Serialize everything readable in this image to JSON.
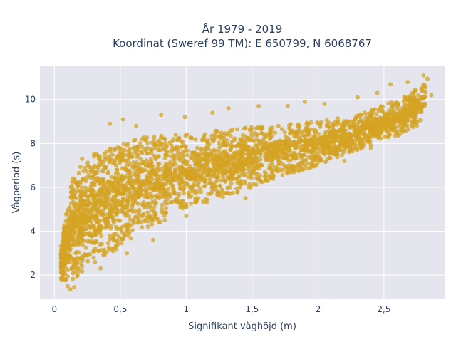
{
  "chart_data": {
    "type": "scatter",
    "title_lines": [
      "År 1979 - 2019",
      "Koordinat (Sweref 99 TM): E 650799, N 6068767"
    ],
    "xlabel": "Signifikant våghöjd (m)",
    "ylabel": "Vågperiod (s)",
    "xlim": [
      -0.11,
      2.96
    ],
    "ylim": [
      0.9,
      11.55
    ],
    "x_ticks": [
      0,
      0.5,
      1,
      1.5,
      2,
      2.5
    ],
    "x_tick_labels": [
      "0",
      "0,5",
      "1",
      "1,5",
      "2",
      "2,5"
    ],
    "y_ticks": [
      2,
      4,
      6,
      8,
      10
    ],
    "y_tick_labels": [
      "2",
      "4",
      "6",
      "8",
      "10"
    ],
    "grid": true,
    "colors": {
      "marker": "#d4a321",
      "plot_background": "#e5e5ee",
      "grid": "#ffffff",
      "text": "#2a3f5f"
    },
    "marker_opacity": 0.75,
    "envelope": {
      "description_of_point_cloud": "dense cloud of wave period vs significant wave height",
      "x": [
        0.05,
        0.1,
        0.15,
        0.2,
        0.3,
        0.4,
        0.5,
        0.6,
        0.7,
        0.8,
        1.0,
        1.2,
        1.4,
        1.6,
        1.8,
        2.0,
        2.2,
        2.4,
        2.6,
        2.75,
        2.82
      ],
      "y_upper": [
        3.4,
        5.6,
        6.6,
        7.1,
        7.5,
        7.8,
        8.0,
        8.2,
        8.3,
        8.4,
        8.5,
        8.6,
        8.7,
        8.8,
        8.9,
        9.0,
        9.2,
        9.5,
        10.0,
        10.5,
        10.9
      ],
      "y_lower": [
        1.8,
        1.4,
        1.8,
        2.1,
        2.5,
        2.9,
        3.3,
        3.7,
        4.1,
        4.4,
        4.9,
        5.4,
        5.8,
        6.2,
        6.6,
        7.0,
        7.5,
        7.9,
        8.3,
        8.8,
        9.4
      ]
    },
    "outliers": [
      {
        "x": 0.42,
        "y": 8.9
      },
      {
        "x": 0.52,
        "y": 9.1
      },
      {
        "x": 0.62,
        "y": 8.8
      },
      {
        "x": 0.81,
        "y": 9.3
      },
      {
        "x": 0.99,
        "y": 9.2
      },
      {
        "x": 1.2,
        "y": 9.4
      },
      {
        "x": 1.32,
        "y": 9.6
      },
      {
        "x": 1.55,
        "y": 9.7
      },
      {
        "x": 1.77,
        "y": 9.7
      },
      {
        "x": 1.9,
        "y": 9.9
      },
      {
        "x": 2.05,
        "y": 9.8
      },
      {
        "x": 2.3,
        "y": 10.1
      },
      {
        "x": 2.45,
        "y": 10.3
      },
      {
        "x": 2.55,
        "y": 10.7
      },
      {
        "x": 2.68,
        "y": 10.8
      },
      {
        "x": 2.8,
        "y": 11.1
      },
      {
        "x": 2.83,
        "y": 10.95
      },
      {
        "x": 2.76,
        "y": 10.2
      },
      {
        "x": 2.86,
        "y": 10.2
      },
      {
        "x": 0.12,
        "y": 1.35
      },
      {
        "x": 0.15,
        "y": 1.45
      },
      {
        "x": 0.1,
        "y": 1.5
      },
      {
        "x": 0.3,
        "y": 7.5
      },
      {
        "x": 0.21,
        "y": 7.3
      },
      {
        "x": 1.4,
        "y": 7.05
      },
      {
        "x": 1.62,
        "y": 6.3
      },
      {
        "x": 1.45,
        "y": 5.5
      },
      {
        "x": 1.82,
        "y": 6.7
      },
      {
        "x": 2.2,
        "y": 7.2
      },
      {
        "x": 2.4,
        "y": 7.8
      },
      {
        "x": 2.65,
        "y": 9.0
      },
      {
        "x": 2.48,
        "y": 8.5
      },
      {
        "x": 1.0,
        "y": 4.7
      },
      {
        "x": 0.75,
        "y": 3.6
      },
      {
        "x": 0.55,
        "y": 3.0
      },
      {
        "x": 0.35,
        "y": 2.3
      }
    ]
  }
}
